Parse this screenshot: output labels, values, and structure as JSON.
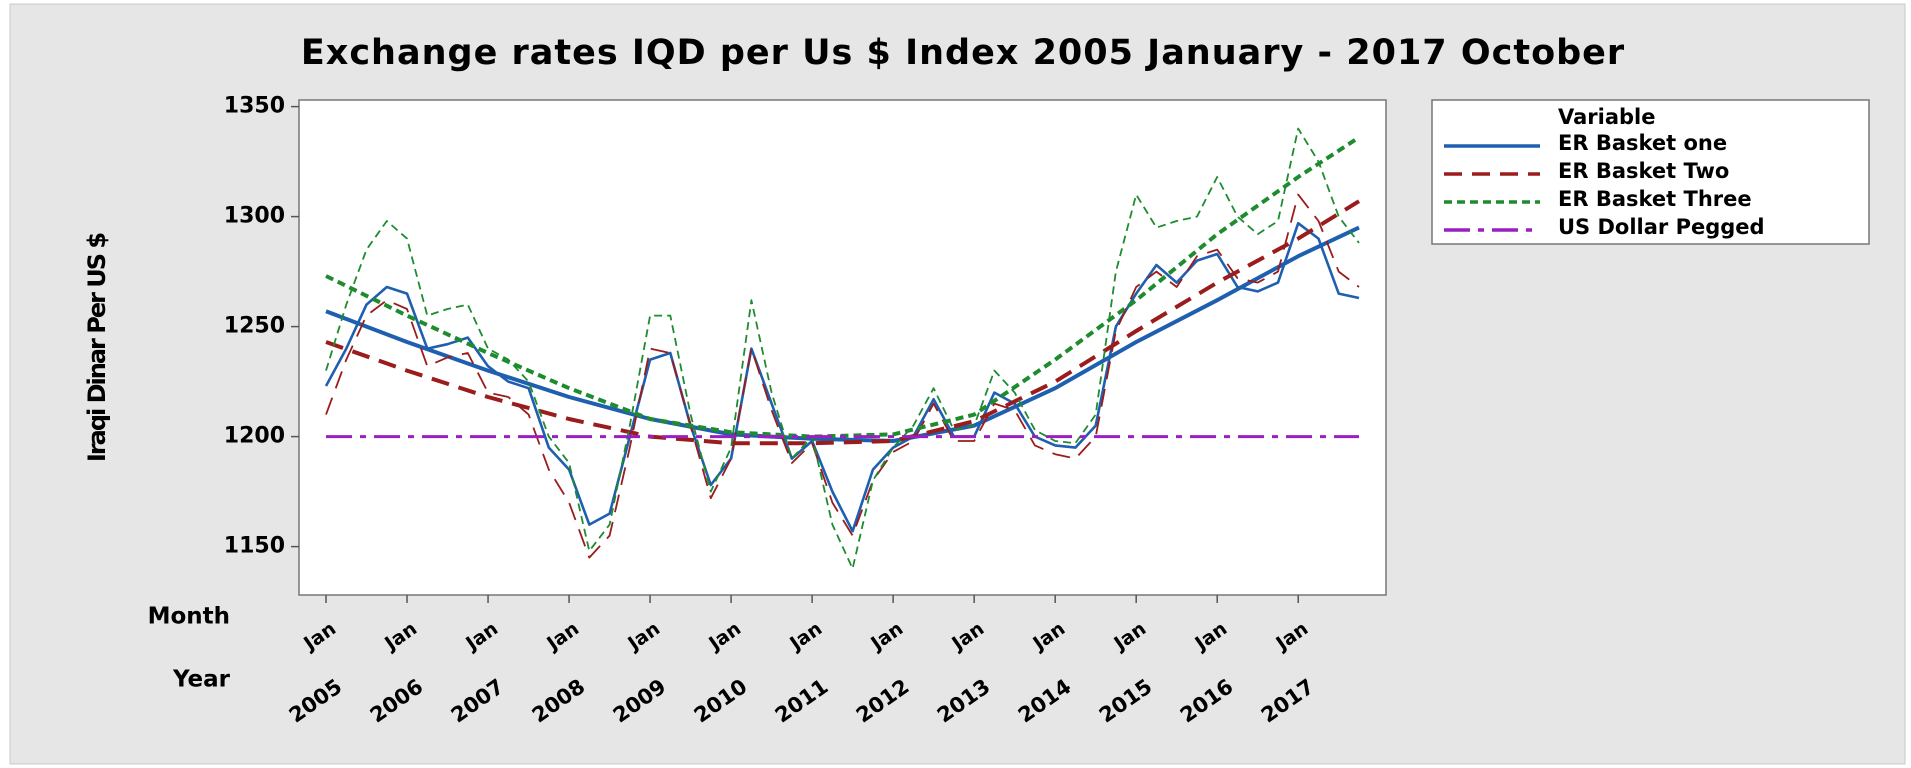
{
  "chart_data": {
    "type": "line",
    "title": "Exchange rates IQD per Us $ Index  2005 January - 2017 October",
    "y_label": "Iraqi Dinar Per US $",
    "x_label_rows": [
      "Month",
      "Year"
    ],
    "legend_title": "Variable",
    "legend": "outside-right",
    "x": [
      "2005-01",
      "2005-04",
      "2005-07",
      "2005-10",
      "2006-01",
      "2006-04",
      "2006-07",
      "2006-10",
      "2007-01",
      "2007-04",
      "2007-07",
      "2007-10",
      "2008-01",
      "2008-04",
      "2008-07",
      "2008-10",
      "2009-01",
      "2009-04",
      "2009-07",
      "2009-10",
      "2010-01",
      "2010-04",
      "2010-07",
      "2010-10",
      "2011-01",
      "2011-04",
      "2011-07",
      "2011-10",
      "2012-01",
      "2012-04",
      "2012-07",
      "2012-10",
      "2013-01",
      "2013-04",
      "2013-07",
      "2013-10",
      "2014-01",
      "2014-04",
      "2014-07",
      "2014-10",
      "2015-01",
      "2015-04",
      "2015-07",
      "2015-10",
      "2016-01",
      "2016-04",
      "2016-07",
      "2016-10",
      "2017-01",
      "2017-04",
      "2017-07",
      "2017-10"
    ],
    "trend_x": [
      "2005-01",
      "2006-01",
      "2007-01",
      "2008-01",
      "2009-01",
      "2010-01",
      "2011-01",
      "2012-01",
      "2013-01",
      "2014-01",
      "2015-01",
      "2016-01",
      "2017-01",
      "2017-10"
    ],
    "xlim": [
      "2004-09",
      "2018-02"
    ],
    "xticks": [
      {
        "value": "2005-01",
        "label": "Jan"
      },
      {
        "value": "2006-01",
        "label": "Jan"
      },
      {
        "value": "2007-01",
        "label": "Jan"
      },
      {
        "value": "2008-01",
        "label": "Jan"
      },
      {
        "value": "2009-01",
        "label": "Jan"
      },
      {
        "value": "2010-01",
        "label": "Jan"
      },
      {
        "value": "2011-01",
        "label": "Jan"
      },
      {
        "value": "2012-01",
        "label": "Jan"
      },
      {
        "value": "2013-01",
        "label": "Jan"
      },
      {
        "value": "2014-01",
        "label": "Jan"
      },
      {
        "value": "2015-01",
        "label": "Jan"
      },
      {
        "value": "2016-01",
        "label": "Jan"
      },
      {
        "value": "2017-01",
        "label": "Jan"
      }
    ],
    "xtick_years": [
      "2005",
      "2006",
      "2007",
      "2008",
      "2009",
      "2010",
      "2011",
      "2012",
      "2013",
      "2014",
      "2015",
      "2016",
      "2017"
    ],
    "ylim": [
      1128,
      1353
    ],
    "yticks": [
      1150,
      1200,
      1250,
      1300,
      1350
    ],
    "series": [
      {
        "name": "ER Basket one",
        "color": "#1f5fb0",
        "dash": "solid",
        "values": [
          1223,
          1240,
          1260,
          1268,
          1265,
          1240,
          1242,
          1245,
          1232,
          1225,
          1222,
          1195,
          1185,
          1160,
          1165,
          1200,
          1235,
          1238,
          1205,
          1178,
          1190,
          1240,
          1215,
          1190,
          1198,
          1175,
          1157,
          1185,
          1195,
          1200,
          1217,
          1200,
          1200,
          1220,
          1215,
          1200,
          1196,
          1195,
          1205,
          1250,
          1265,
          1278,
          1270,
          1280,
          1283,
          1268,
          1266,
          1270,
          1297,
          1290,
          1265,
          1263
        ],
        "trend": [
          1257,
          1243,
          1230,
          1218,
          1208,
          1201,
          1199,
          1198,
          1205,
          1222,
          1243,
          1262,
          1282,
          1295
        ]
      },
      {
        "name": "ER Basket Two",
        "color": "#9b1c1c",
        "dash": "long-dash",
        "values": [
          1210,
          1235,
          1255,
          1262,
          1258,
          1232,
          1236,
          1238,
          1220,
          1218,
          1210,
          1185,
          1170,
          1145,
          1155,
          1195,
          1240,
          1238,
          1205,
          1172,
          1190,
          1240,
          1212,
          1188,
          1197,
          1170,
          1155,
          1180,
          1193,
          1198,
          1215,
          1198,
          1198,
          1215,
          1212,
          1196,
          1192,
          1190,
          1200,
          1248,
          1268,
          1275,
          1268,
          1282,
          1285,
          1272,
          1270,
          1275,
          1310,
          1298,
          1275,
          1268
        ],
        "trend": [
          1243,
          1230,
          1218,
          1208,
          1200,
          1197,
          1197,
          1198,
          1207,
          1225,
          1248,
          1270,
          1290,
          1307
        ]
      },
      {
        "name": "ER Basket Three",
        "color": "#1e8c2e",
        "dash": "short-dash",
        "values": [
          1230,
          1260,
          1285,
          1298,
          1290,
          1255,
          1258,
          1260,
          1240,
          1235,
          1225,
          1200,
          1188,
          1148,
          1160,
          1205,
          1255,
          1255,
          1210,
          1175,
          1195,
          1262,
          1220,
          1190,
          1200,
          1160,
          1140,
          1180,
          1195,
          1205,
          1222,
          1203,
          1205,
          1230,
          1220,
          1203,
          1198,
          1197,
          1210,
          1275,
          1310,
          1295,
          1298,
          1300,
          1318,
          1300,
          1292,
          1298,
          1340,
          1325,
          1300,
          1288
        ],
        "trend": [
          1273,
          1255,
          1238,
          1222,
          1208,
          1202,
          1200,
          1201,
          1210,
          1235,
          1262,
          1292,
          1318,
          1336
        ]
      },
      {
        "name": "US Dollar  Pegged",
        "color": "#9b1fc0",
        "dash": "dash-dot",
        "values": [
          1200,
          1200,
          1200,
          1200,
          1200,
          1200,
          1200,
          1200,
          1200,
          1200,
          1200,
          1200,
          1200,
          1200,
          1200,
          1200,
          1200,
          1200,
          1200,
          1200,
          1200,
          1200,
          1200,
          1200,
          1200,
          1200,
          1200,
          1200,
          1200,
          1200,
          1200,
          1200,
          1200,
          1200,
          1200,
          1200,
          1200,
          1200,
          1200,
          1200,
          1200,
          1200,
          1200,
          1200,
          1200,
          1200,
          1200,
          1200,
          1200,
          1200,
          1200,
          1200
        ]
      }
    ]
  }
}
